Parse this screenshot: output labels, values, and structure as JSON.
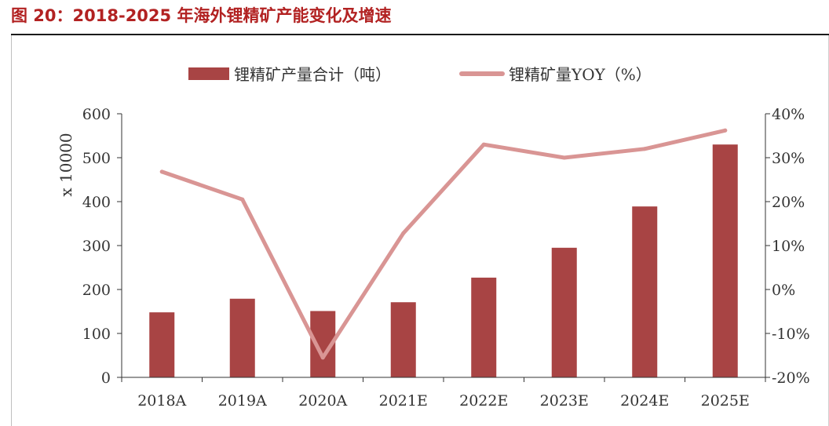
{
  "figure": {
    "title": "图 20：2018-2025 年海外锂精矿产能变化及增速"
  },
  "colors": {
    "title": "#b22222",
    "bar": "#a84444",
    "line": "#d99594",
    "axis": "#333333"
  },
  "chart_data": {
    "type": "bar",
    "categories": [
      "2018A",
      "2019A",
      "2020A",
      "2021E",
      "2022E",
      "2023E",
      "2024E",
      "2025E"
    ],
    "series": [
      {
        "name": "锂精矿产量合计（吨）",
        "type": "bar",
        "axis": "left",
        "values": [
          148,
          179,
          151,
          171,
          227,
          295,
          389,
          530
        ]
      },
      {
        "name": "锂精矿量YOY（%）",
        "type": "line",
        "axis": "right",
        "values": [
          26.8,
          20.5,
          -15.5,
          12.8,
          33.0,
          30.0,
          32.0,
          36.2
        ]
      }
    ],
    "ylabel": "x 10000",
    "ylim": [
      0,
      600
    ],
    "yticks": [
      "0",
      "100",
      "200",
      "300",
      "400",
      "500",
      "600"
    ],
    "y2lim": [
      -20,
      40
    ],
    "y2ticks": [
      "-20%",
      "-10%",
      "0%",
      "10%",
      "20%",
      "30%",
      "40%"
    ],
    "legend": "top-center",
    "grid": false
  }
}
